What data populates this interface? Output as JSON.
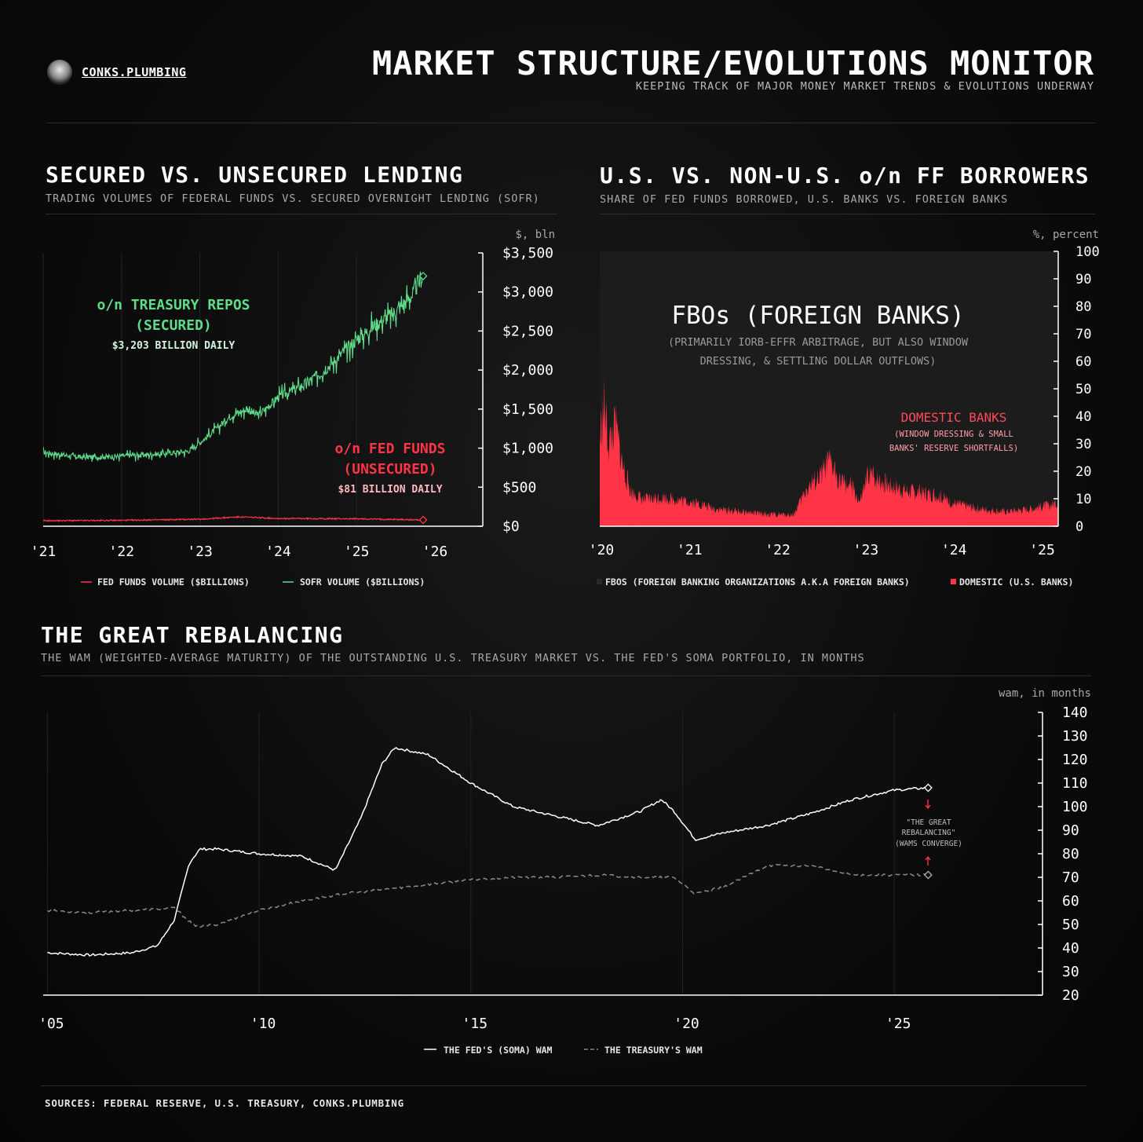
{
  "header": {
    "brand": "CONKS.PLUMBING",
    "title": "MARKET STRUCTURE/EVOLUTIONS MONITOR",
    "subtitle": "KEEPING TRACK OF MAJOR MONEY MARKET TRENDS & EVOLUTIONS UNDERWAY"
  },
  "footer": {
    "sources": "SOURCES: FEDERAL RESERVE, U.S. TREASURY, CONKS.PLUMBING"
  },
  "colors": {
    "green": "#5fdc8a",
    "red": "#ff3446",
    "pink": "#ff5a6a",
    "white": "#ffffff",
    "grey": "#8a8a8a"
  },
  "chart_data": [
    {
      "type": "line",
      "title": "SECURED VS. UNSECURED LENDING",
      "subtitle": "TRADING VOLUMES OF FEDERAL FUNDS VS. SECURED OVERNIGHT LENDING (SOFR)",
      "unit_label": "$, bln",
      "ylim": [
        0,
        3500
      ],
      "y_ticks": [
        "$0",
        "$500",
        "$1,000",
        "$1,500",
        "$2,000",
        "$2,500",
        "$3,000",
        "$3,500"
      ],
      "x_ticks": [
        "'21",
        "'22",
        "'23",
        "'24",
        "'25",
        "'26"
      ],
      "x_tick_values": [
        2021,
        2022,
        2023,
        2024,
        2025,
        2026
      ],
      "xlim": [
        2021,
        2026.6
      ],
      "annotations": {
        "green_title": "o/n TREASURY REPOS",
        "green_title2": "(SECURED)",
        "green_value": "$3,203 BILLION DAILY",
        "red_title": "o/n FED FUNDS",
        "red_title2": "(UNSECURED)",
        "red_value": "$81 BILLION DAILY"
      },
      "series": [
        {
          "name": "SOFR VOLUME ($BILLIONS)",
          "color": "#5fdc8a",
          "x": [
            2021.0,
            2021.5,
            2022.0,
            2022.5,
            2022.85,
            2023.1,
            2023.4,
            2023.6,
            2023.75,
            2024.0,
            2024.3,
            2024.6,
            2024.9,
            2025.2,
            2025.5,
            2025.7,
            2025.85
          ],
          "y": [
            950,
            880,
            900,
            930,
            960,
            1150,
            1420,
            1500,
            1420,
            1650,
            1800,
            2000,
            2300,
            2550,
            2750,
            2950,
            3203
          ]
        },
        {
          "name": "FED FUNDS VOLUME ($BILLIONS)",
          "color": "#ff3446",
          "x": [
            2021.0,
            2022.0,
            2023.0,
            2023.5,
            2024.0,
            2025.0,
            2025.85
          ],
          "y": [
            70,
            75,
            90,
            120,
            100,
            95,
            81
          ]
        }
      ]
    },
    {
      "type": "area",
      "title": "U.S. VS. NON-U.S. o/n FF BORROWERS",
      "subtitle": "SHARE OF FED FUNDS BORROWED, U.S. BANKS VS. FOREIGN BANKS",
      "unit_label": "%, percent",
      "ylim": [
        0,
        100
      ],
      "y_ticks": [
        "0",
        "10",
        "20",
        "30",
        "40",
        "50",
        "60",
        "70",
        "80",
        "90",
        "100"
      ],
      "x_ticks": [
        "'20",
        "'21",
        "'22",
        "'23",
        "'24",
        "'25"
      ],
      "x_tick_values": [
        2020,
        2021,
        2022,
        2023,
        2024,
        2025
      ],
      "xlim": [
        2020,
        2025.2
      ],
      "annotations": {
        "fbo_title": "FBOs (FOREIGN BANKS)",
        "fbo_note1": "(PRIMARILY IORB-EFFR ARBITRAGE, BUT ALSO WINDOW",
        "fbo_note2": "DRESSING, & SETTLING DOLLAR OUTFLOWS)",
        "dom_title": "DOMESTIC BANKS",
        "dom_note1": "(WINDOW DRESSING & SMALL",
        "dom_note2": "BANKS' RESERVE SHORTFALLS)"
      },
      "series": [
        {
          "name": "FBOS (FOREIGN BANKING ORGANIZATIONS A.K.A FOREIGN BANKS)",
          "color": "#1a1a1a",
          "x": [
            2020.0,
            2025.2
          ],
          "y": [
            100,
            100
          ]
        },
        {
          "name": "DOMESTIC (U.S. BANKS)",
          "color": "#ff3446",
          "x": [
            2020.0,
            2020.05,
            2020.1,
            2020.18,
            2020.25,
            2020.35,
            2020.5,
            2020.7,
            2020.9,
            2021.1,
            2021.3,
            2021.6,
            2021.9,
            2022.2,
            2022.35,
            2022.5,
            2022.6,
            2022.75,
            2022.85,
            2022.95,
            2023.05,
            2023.15,
            2023.3,
            2023.5,
            2023.8,
            2024.0,
            2024.3,
            2024.6,
            2024.9,
            2025.2
          ],
          "y": [
            30,
            42,
            28,
            35,
            22,
            12,
            9,
            10,
            9,
            8,
            6,
            5,
            4,
            4,
            13,
            17,
            22,
            15,
            14,
            8,
            18,
            16,
            14,
            12,
            11,
            8,
            6,
            5,
            6,
            8
          ]
        }
      ]
    },
    {
      "type": "line",
      "title": "THE GREAT REBALANCING",
      "subtitle": "THE WAM (WEIGHTED-AVERAGE MATURITY) OF THE OUTSTANDING U.S. TREASURY MARKET VS. THE FED'S SOMA PORTFOLIO, IN MONTHS",
      "unit_label": "wam, in months",
      "ylim": [
        20,
        140
      ],
      "y_ticks": [
        "20",
        "30",
        "40",
        "50",
        "60",
        "70",
        "80",
        "90",
        "100",
        "110",
        "120",
        "130",
        "140"
      ],
      "x_ticks": [
        "'05",
        "'10",
        "'15",
        "'20",
        "'25"
      ],
      "x_tick_values": [
        2005,
        2010,
        2015,
        2020,
        2025
      ],
      "xlim": [
        2004.9,
        2028.5
      ],
      "annotations": {
        "rebal1": "\"THE GREAT",
        "rebal2": "REBALANCING\"",
        "rebal3": "(WAMS CONVERGE)"
      },
      "series": [
        {
          "name": "THE FED'S (SOMA) WAM",
          "color": "#ffffff",
          "x": [
            2005.0,
            2006.0,
            2007.0,
            2007.6,
            2008.0,
            2008.35,
            2008.6,
            2009.0,
            2010.0,
            2011.0,
            2011.8,
            2012.4,
            2012.9,
            2013.2,
            2014.0,
            2015.0,
            2016.0,
            2017.0,
            2018.0,
            2019.0,
            2019.5,
            2019.8,
            2020.3,
            2021.0,
            2022.0,
            2023.0,
            2024.0,
            2025.0,
            2025.8
          ],
          "y": [
            38,
            37,
            38,
            41,
            52,
            76,
            82,
            82,
            80,
            79,
            73,
            95,
            118,
            125,
            122,
            110,
            100,
            96,
            92,
            98,
            103,
            98,
            86,
            89,
            92,
            97,
            103,
            107,
            108
          ]
        },
        {
          "name": "THE TREASURY'S WAM",
          "color": "#8a8a8a",
          "dashed": true,
          "x": [
            2005.0,
            2006.0,
            2007.0,
            2008.0,
            2008.5,
            2009.0,
            2010.0,
            2011.0,
            2012.0,
            2013.0,
            2014.0,
            2015.0,
            2016.0,
            2017.0,
            2018.0,
            2019.0,
            2019.8,
            2020.3,
            2021.0,
            2022.0,
            2023.0,
            2024.0,
            2025.0,
            2025.8
          ],
          "y": [
            56,
            55,
            56,
            57,
            49,
            50,
            56,
            60,
            63,
            65,
            67,
            69,
            70,
            70,
            71,
            70,
            70,
            63,
            66,
            75,
            75,
            71,
            71,
            71
          ]
        }
      ]
    }
  ]
}
